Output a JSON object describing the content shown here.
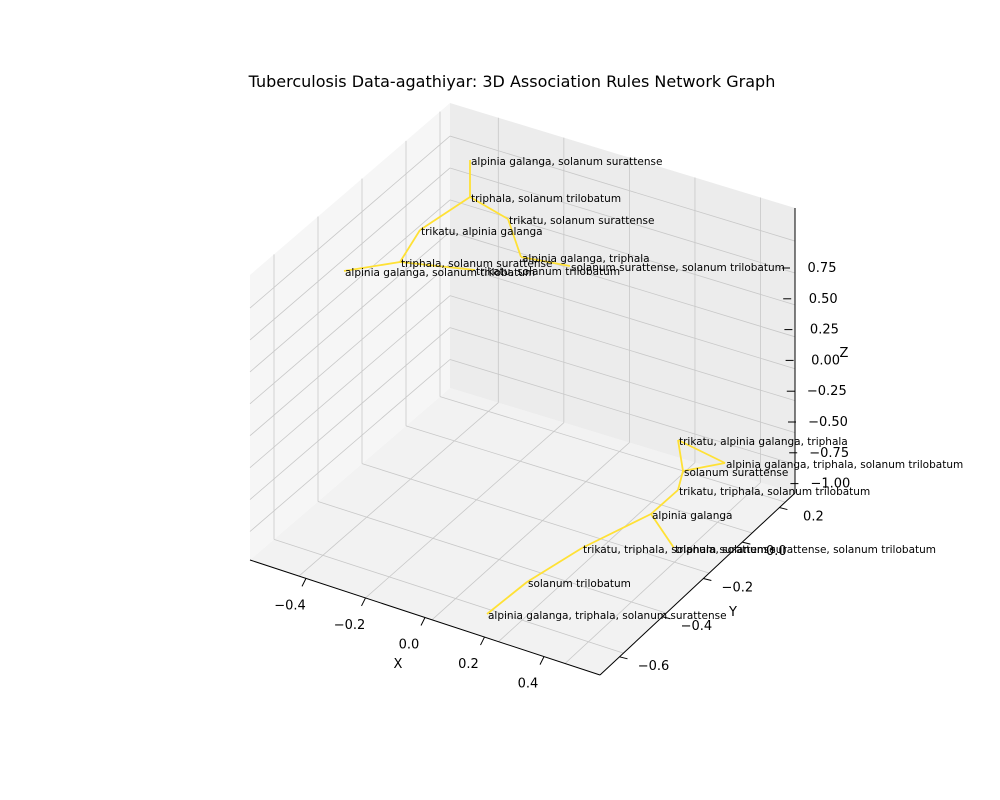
{
  "chart_data": {
    "type": "network-3d",
    "title": "Tuberculosis Data-agathiyar:  3D Association Rules Network Graph",
    "xlabel": "X",
    "ylabel": "Y",
    "zlabel": "Z",
    "xticks": [
      "−0.4",
      "−0.2",
      "0.0",
      "0.2",
      "0.4"
    ],
    "yticks": [
      "0.2",
      "0.0",
      "−0.2",
      "−0.4",
      "−0.6"
    ],
    "zticks": [
      "0.75",
      "0.50",
      "0.25",
      "0.00",
      "−0.25",
      "−0.50",
      "−0.75",
      "−1.00"
    ],
    "edge_color": "#ffe135",
    "nodes": [
      {
        "label": "alpinia galanga, solanum surattense"
      },
      {
        "label": "triphala, solanum trilobatum"
      },
      {
        "label": "trikatu, solanum surattense"
      },
      {
        "label": "trikatu, alpinia galanga"
      },
      {
        "label": "alpinia galanga, triphala"
      },
      {
        "label": "triphala, solanum surattense"
      },
      {
        "label": "solanum surattense, solanum trilobatum"
      },
      {
        "label": "trikatu, solanum trilobatum"
      },
      {
        "label": "alpinia galanga, solanum trilobatum"
      },
      {
        "label": "trikatu, alpinia galanga, triphala"
      },
      {
        "label": "alpinia galanga, triphala, solanum trilobatum"
      },
      {
        "label": "solanum surattense"
      },
      {
        "label": "trikatu, triphala, solanum trilobatum"
      },
      {
        "label": "alpinia galanga"
      },
      {
        "label": "trikatu, triphala, solanum surattense"
      },
      {
        "label": "triphala, solanum surattense, solanum trilobatum"
      },
      {
        "label": "solanum trilobatum"
      },
      {
        "label": "alpinia galanga, triphala, solanum surattense"
      }
    ],
    "edges": [
      [
        0,
        1
      ],
      [
        1,
        2
      ],
      [
        1,
        3
      ],
      [
        2,
        4
      ],
      [
        3,
        5
      ],
      [
        5,
        8
      ],
      [
        4,
        6
      ],
      [
        5,
        7
      ],
      [
        9,
        10
      ],
      [
        9,
        11
      ],
      [
        10,
        11
      ],
      [
        11,
        12
      ],
      [
        12,
        13
      ],
      [
        13,
        14
      ],
      [
        13,
        15
      ],
      [
        14,
        16
      ],
      [
        16,
        17
      ]
    ]
  }
}
